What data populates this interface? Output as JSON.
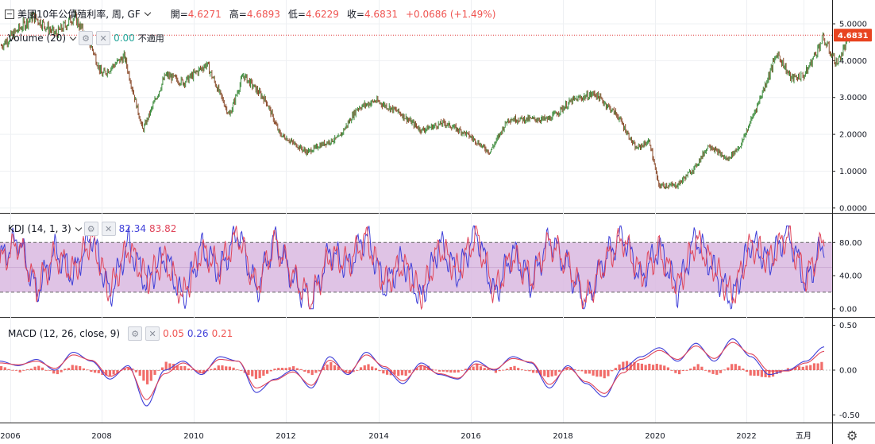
{
  "header": {
    "symbol_title": "美國10年公債殖利率, 周, GF",
    "open_label": "開=",
    "open": "4.6271",
    "high_label": "高=",
    "high": "4.6893",
    "low_label": "低=",
    "low": "4.6229",
    "close_label": "收=",
    "close": "4.6831",
    "change": "+0.0686 (+1.49%)"
  },
  "volume_legend": {
    "name": "Volume (20)",
    "value": "0.00",
    "note": "不適用"
  },
  "kdj_legend": {
    "name": "KDJ (14, 1, 3)",
    "k": "82.34",
    "d": "83.82"
  },
  "macd_legend": {
    "name": "MACD (12, 26, close, 9)",
    "hist": "0.05",
    "macd": "0.26",
    "signal": "0.21"
  },
  "price_badge": "4.6831",
  "colors": {
    "up": "#26a69a",
    "down": "#ef5350",
    "candle_up": "#3a8a3a",
    "candle_down": "#8a4a2a",
    "k_line": "#3f3fd8",
    "d_line": "#e0455a",
    "band_fill": "#d9b8e0",
    "price_line": "#e03a3a"
  },
  "icons": [
    "collapse-icon",
    "chevron-down-icon",
    "gear-icon",
    "close-icon",
    "settings-gear-icon"
  ],
  "chart_data": [
    {
      "type": "line",
      "title": "美國10年公債殖利率, 周, GF",
      "x_ticks": [
        "2006",
        "2008",
        "2010",
        "2012",
        "2014",
        "2016",
        "2018",
        "2020",
        "2022",
        "五月"
      ],
      "y_ticks": [
        "0.0000",
        "1.0000",
        "2.0000",
        "3.0000",
        "4.0000",
        "5.0000"
      ],
      "ylim": [
        -0.1,
        5.55
      ],
      "x": [
        2005.8,
        2006.5,
        2007.0,
        2007.4,
        2007.8,
        2008.0,
        2008.5,
        2008.9,
        2009.0,
        2009.4,
        2009.8,
        2010.3,
        2010.8,
        2011.1,
        2011.6,
        2011.9,
        2012.5,
        2012.8,
        2013.2,
        2013.6,
        2014.0,
        2014.5,
        2015.0,
        2015.5,
        2016.0,
        2016.5,
        2016.9,
        2017.3,
        2017.8,
        2018.3,
        2018.8,
        2019.3,
        2019.7,
        2020.0,
        2020.2,
        2020.6,
        2021.0,
        2021.3,
        2021.7,
        2022.0,
        2022.4,
        2022.8,
        2023.1,
        2023.4,
        2023.8,
        2024.1,
        2024.4
      ],
      "y": [
        4.4,
        5.2,
        4.7,
        5.2,
        4.3,
        3.6,
        4.1,
        2.1,
        2.4,
        3.6,
        3.4,
        3.9,
        2.5,
        3.6,
        2.9,
        2.0,
        1.5,
        1.7,
        1.9,
        2.7,
        2.9,
        2.6,
        2.1,
        2.3,
        2.0,
        1.5,
        2.4,
        2.4,
        2.4,
        2.9,
        3.1,
        2.5,
        1.6,
        1.8,
        0.6,
        0.6,
        1.1,
        1.7,
        1.3,
        1.7,
        2.9,
        4.2,
        3.5,
        3.6,
        4.6,
        3.9,
        4.68
      ],
      "current_price": 4.6831
    },
    {
      "type": "line",
      "title": "KDJ (14, 1, 3)",
      "y_ticks": [
        "0.00",
        "40.00",
        "80.00"
      ],
      "ylim": [
        -5,
        110
      ],
      "band": [
        20,
        80
      ],
      "series": [
        {
          "name": "K",
          "values": [
            60,
            85,
            20,
            70,
            40,
            90,
            15,
            80,
            30,
            65,
            10,
            75,
            45,
            95,
            20,
            85,
            35,
            5,
            70,
            50,
            90,
            25,
            60,
            10,
            80,
            40,
            95,
            15,
            70,
            30,
            85,
            50,
            5,
            60,
            90,
            35,
            75,
            20,
            88,
            45,
            10,
            82,
            55,
            95,
            30,
            82
          ]
        },
        {
          "name": "D",
          "values": [
            55,
            80,
            25,
            65,
            45,
            85,
            20,
            75,
            35,
            60,
            15,
            70,
            50,
            90,
            25,
            80,
            40,
            10,
            65,
            55,
            85,
            30,
            55,
            15,
            75,
            45,
            90,
            20,
            65,
            35,
            80,
            55,
            10,
            55,
            85,
            40,
            70,
            25,
            83,
            50,
            15,
            78,
            58,
            90,
            35,
            84
          ]
        }
      ]
    },
    {
      "type": "line",
      "title": "MACD (12, 26, close, 9)",
      "y_ticks": [
        "-0.50",
        "0.00",
        "0.50"
      ],
      "ylim": [
        -0.55,
        0.55
      ],
      "series": [
        {
          "name": "MACD",
          "values": [
            0.1,
            0.05,
            0.12,
            0.0,
            0.2,
            0.1,
            -0.1,
            0.05,
            -0.4,
            0.0,
            0.1,
            -0.05,
            0.15,
            0.1,
            -0.25,
            -0.1,
            0.0,
            -0.2,
            0.15,
            -0.05,
            0.2,
            0.02,
            -0.15,
            0.08,
            -0.05,
            -0.1,
            0.1,
            0.0,
            0.15,
            0.08,
            -0.2,
            0.05,
            -0.15,
            -0.3,
            0.02,
            0.15,
            0.25,
            0.1,
            0.3,
            0.1,
            0.35,
            0.15,
            -0.05,
            0.0,
            0.1,
            0.26
          ]
        },
        {
          "name": "Signal",
          "values": [
            0.08,
            0.06,
            0.1,
            0.02,
            0.17,
            0.11,
            -0.07,
            0.03,
            -0.33,
            -0.04,
            0.08,
            -0.03,
            0.12,
            0.1,
            -0.2,
            -0.11,
            -0.02,
            -0.17,
            0.11,
            -0.03,
            0.17,
            0.04,
            -0.12,
            0.05,
            -0.04,
            -0.09,
            0.07,
            0.01,
            0.13,
            0.09,
            -0.16,
            0.03,
            -0.13,
            -0.26,
            -0.03,
            0.12,
            0.22,
            0.12,
            0.27,
            0.13,
            0.31,
            0.18,
            -0.01,
            -0.01,
            0.08,
            0.21
          ]
        }
      ]
    }
  ]
}
